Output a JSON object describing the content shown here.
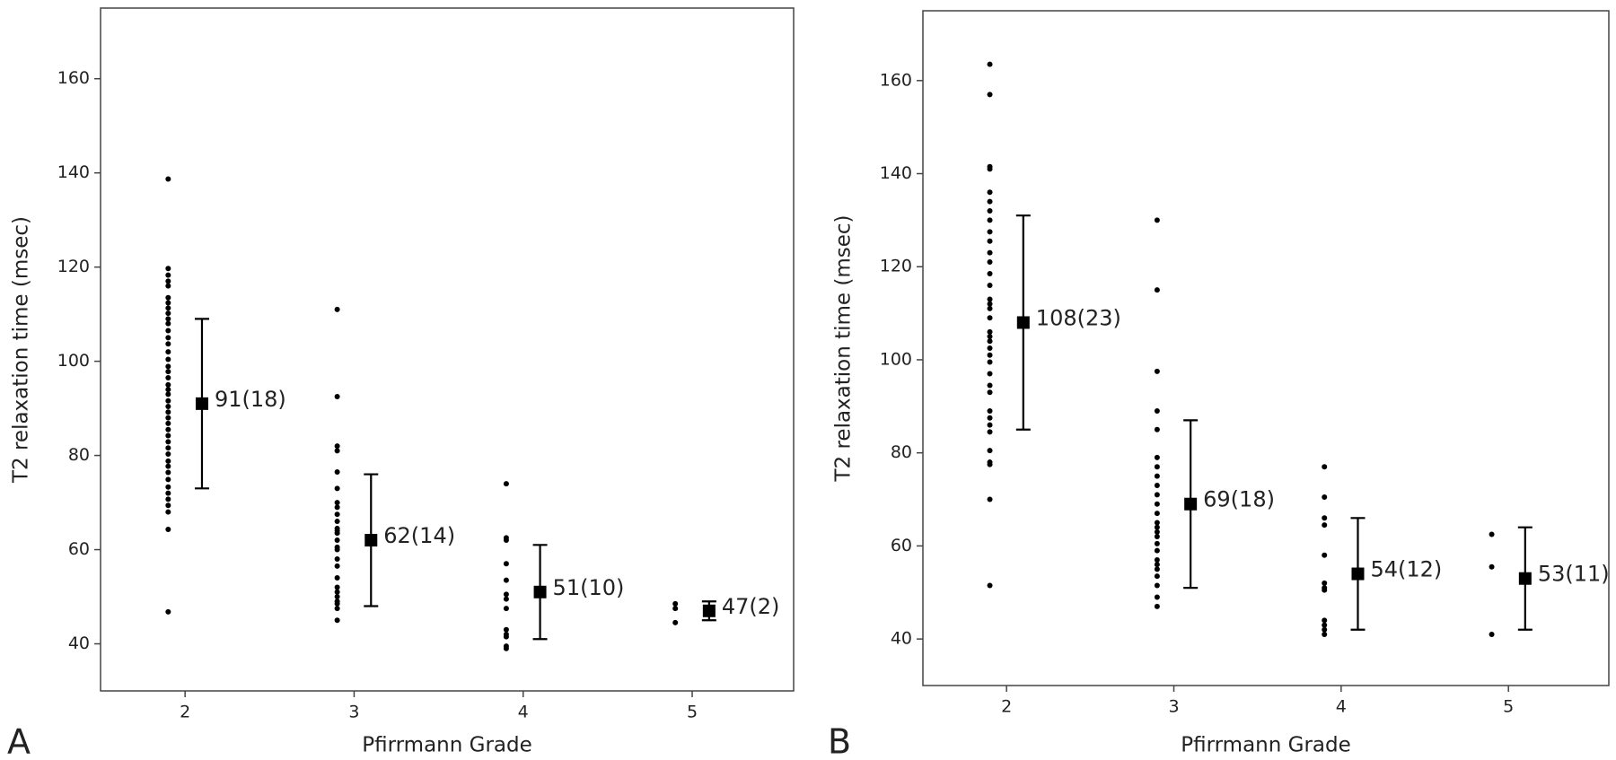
{
  "chart_data": [
    {
      "type": "scatter",
      "panel_label": "A",
      "xlabel": "Pfirrmann Grade",
      "ylabel": "T2 relaxation time (msec)",
      "xlim": [
        1.5,
        5.6
      ],
      "ylim": [
        30,
        175
      ],
      "xticks": [
        2,
        3,
        4,
        5
      ],
      "yticks": [
        40,
        60,
        80,
        100,
        120,
        140,
        160
      ],
      "color": "#000000",
      "points": {
        "x": [
          1.9,
          1.9,
          1.9,
          1.9,
          1.9,
          1.9,
          1.9,
          1.9,
          1.9,
          1.9,
          1.9,
          1.9,
          1.9,
          1.9,
          1.9,
          1.9,
          1.9,
          1.9,
          1.9,
          1.9,
          1.9,
          1.9,
          1.9,
          1.9,
          1.9,
          1.9,
          1.9,
          1.9,
          1.9,
          1.9,
          1.9,
          1.9,
          1.9,
          1.9,
          1.9,
          1.9,
          1.9,
          1.9,
          1.9,
          1.9,
          1.9,
          1.9,
          1.9,
          2.9,
          2.9,
          2.9,
          2.9,
          2.9,
          2.9,
          2.9,
          2.9,
          2.9,
          2.9,
          2.9,
          2.9,
          2.9,
          2.9,
          2.9,
          2.9,
          2.9,
          2.9,
          2.9,
          2.9,
          2.9,
          2.9,
          2.9,
          2.9,
          2.9,
          2.9,
          3.9,
          3.9,
          3.9,
          3.9,
          3.9,
          3.9,
          3.9,
          3.9,
          3.9,
          3.9,
          3.9,
          3.9,
          3.9,
          4.9,
          4.9,
          4.9
        ],
        "y": [
          138.7,
          119.7,
          118.3,
          117,
          116,
          113.5,
          112.4,
          111.3,
          110.2,
          109,
          108,
          106.5,
          105,
          103.7,
          102,
          100.4,
          98.9,
          97.8,
          96.5,
          95,
          94,
          93,
          91.6,
          90.4,
          89.2,
          88,
          86.8,
          85.5,
          84.2,
          82.9,
          81.6,
          80.3,
          78.8,
          77.7,
          76.4,
          74.9,
          73.3,
          72,
          70.7,
          69.4,
          68,
          64.3,
          46.8,
          111,
          92.5,
          82,
          81,
          76.5,
          73,
          70,
          69,
          67.5,
          66,
          64.5,
          64,
          63.5,
          62,
          60.5,
          60,
          58,
          56.5,
          54,
          52,
          51,
          50,
          49,
          48.5,
          47.5,
          45,
          74,
          62.5,
          62,
          57,
          53.5,
          50.5,
          49.5,
          47.5,
          43,
          42,
          41.5,
          39.5,
          39,
          48.5,
          47.5,
          44.5
        ]
      },
      "means": {
        "x": [
          2.1,
          3.1,
          4.1,
          5.1
        ],
        "values": [
          91,
          62,
          51,
          47
        ],
        "errors": [
          18,
          14,
          10,
          2
        ],
        "value_labels": [
          "91(18)",
          "62(14)",
          "51(10)",
          "47(2)"
        ]
      }
    },
    {
      "type": "scatter",
      "panel_label": "B",
      "xlabel": "Pfirrmann Grade",
      "ylabel": "T2 relaxation time (msec)",
      "xlim": [
        1.5,
        5.6
      ],
      "ylim": [
        30,
        175
      ],
      "xticks": [
        2,
        3,
        4,
        5
      ],
      "yticks": [
        40,
        60,
        80,
        100,
        120,
        140,
        160
      ],
      "color": "#000000",
      "points": {
        "x": [
          1.9,
          1.9,
          1.9,
          1.9,
          1.9,
          1.9,
          1.9,
          1.9,
          1.9,
          1.9,
          1.9,
          1.9,
          1.9,
          1.9,
          1.9,
          1.9,
          1.9,
          1.9,
          1.9,
          1.9,
          1.9,
          1.9,
          1.9,
          1.9,
          1.9,
          1.9,
          1.9,
          1.9,
          1.9,
          1.9,
          1.9,
          1.9,
          1.9,
          1.9,
          1.9,
          1.9,
          2.9,
          2.9,
          2.9,
          2.9,
          2.9,
          2.9,
          2.9,
          2.9,
          2.9,
          2.9,
          2.9,
          2.9,
          2.9,
          2.9,
          2.9,
          2.9,
          2.9,
          2.9,
          2.9,
          2.9,
          2.9,
          2.9,
          2.9,
          2.9,
          2.9,
          3.9,
          3.9,
          3.9,
          3.9,
          3.9,
          3.9,
          3.9,
          3.9,
          3.9,
          3.9,
          3.9,
          3.9,
          4.9,
          4.9,
          4.9
        ],
        "y": [
          163.5,
          157,
          141.5,
          141,
          136,
          134,
          132,
          130,
          127.5,
          125.5,
          123,
          121,
          118.5,
          116,
          113,
          112,
          111,
          109,
          106,
          105,
          104,
          102.5,
          101,
          99.5,
          97,
          94.5,
          93,
          89,
          87.5,
          86,
          84.5,
          80.5,
          78,
          77.5,
          70,
          51.5,
          130,
          115,
          97.5,
          89,
          85,
          79,
          77,
          75,
          73,
          71,
          69,
          67,
          65,
          64,
          63,
          62,
          60.5,
          59,
          57,
          56,
          55,
          53.5,
          51.5,
          49,
          47,
          77,
          70.5,
          66,
          64.5,
          58,
          52,
          51,
          50.5,
          44,
          43,
          42,
          41,
          62.5,
          55.5,
          41
        ]
      },
      "means": {
        "x": [
          2.1,
          3.1,
          4.1,
          5.1
        ],
        "values": [
          108,
          69,
          54,
          53
        ],
        "errors": [
          23,
          18,
          12,
          11
        ],
        "value_labels": [
          "108(23)",
          "69(18)",
          "54(12)",
          "53(11)"
        ]
      }
    }
  ]
}
